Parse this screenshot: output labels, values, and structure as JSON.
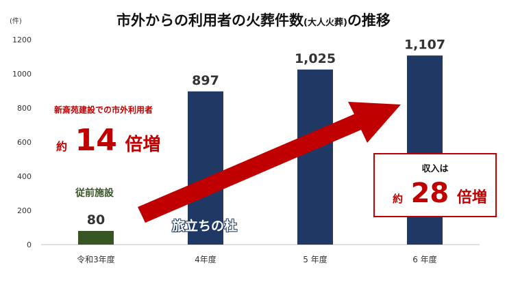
{
  "title": {
    "main_before": "市外からの利用者の火葬件数",
    "main_paren": "(大人火葬)",
    "main_after": "の推移"
  },
  "y_unit": "(件)",
  "callout_left": {
    "caption": "新斎苑建設での市外利用者",
    "prefix": "約",
    "number": "14",
    "suffix": "倍増"
  },
  "callout_right": {
    "caption": "収入は",
    "prefix": "約",
    "number": "28",
    "suffix": "倍増"
  },
  "old_facility_label": "従前施設",
  "new_facility_label": "旅立ちの杜",
  "colors": {
    "old_bar": "#375623",
    "new_bar": "#1f3864",
    "arrow": "#c00000",
    "accent_text": "#c00000"
  },
  "chart_data": {
    "type": "bar",
    "categories": [
      "令和3年度",
      "4年度",
      "5 年度",
      "6 年度"
    ],
    "values": [
      80,
      897,
      1025,
      1107
    ],
    "value_labels": [
      "80",
      "897",
      "1,025",
      "1,107"
    ],
    "ylim": [
      0,
      1200
    ],
    "yticks": [
      0,
      200,
      400,
      600,
      800,
      1000,
      1200
    ],
    "title": "市外からの利用者の火葬件数(大人火葬)の推移",
    "ylabel": "(件)",
    "xlabel": "",
    "grid": false,
    "legend": "none"
  }
}
